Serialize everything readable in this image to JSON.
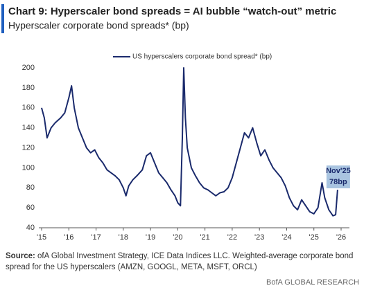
{
  "chart_data": {
    "type": "line",
    "title": "Chart 9: Hyperscaler bond spreads = AI bubble “watch-out” metric",
    "subtitle": "Hyperscaler corporate bond spreads* (bp)",
    "x": [
      2015.0,
      2015.1,
      2015.2,
      2015.35,
      2015.5,
      2015.7,
      2015.85,
      2016.0,
      2016.1,
      2016.2,
      2016.35,
      2016.5,
      2016.65,
      2016.8,
      2016.95,
      2017.1,
      2017.25,
      2017.4,
      2017.55,
      2017.7,
      2017.85,
      2018.0,
      2018.1,
      2018.2,
      2018.35,
      2018.5,
      2018.7,
      2018.85,
      2019.0,
      2019.15,
      2019.3,
      2019.45,
      2019.6,
      2019.75,
      2019.9,
      2020.0,
      2020.1,
      2020.17,
      2020.22,
      2020.28,
      2020.35,
      2020.5,
      2020.65,
      2020.8,
      2020.95,
      2021.1,
      2021.25,
      2021.4,
      2021.55,
      2021.7,
      2021.85,
      2022.0,
      2022.15,
      2022.3,
      2022.45,
      2022.6,
      2022.75,
      2022.9,
      2023.05,
      2023.2,
      2023.35,
      2023.5,
      2023.65,
      2023.8,
      2023.95,
      2024.1,
      2024.25,
      2024.4,
      2024.55,
      2024.7,
      2024.85,
      2025.0,
      2025.15,
      2025.3,
      2025.4,
      2025.55,
      2025.7,
      2025.8,
      2025.87
    ],
    "series": [
      {
        "name": "US hyperscalers corporate bond spread* (bp)",
        "color": "#1a2a6c",
        "values": [
          160,
          150,
          130,
          140,
          145,
          150,
          155,
          170,
          182,
          160,
          140,
          130,
          120,
          115,
          118,
          110,
          105,
          98,
          95,
          92,
          88,
          80,
          72,
          82,
          88,
          92,
          98,
          112,
          115,
          105,
          95,
          90,
          85,
          78,
          72,
          65,
          62,
          130,
          200,
          150,
          120,
          100,
          92,
          85,
          80,
          78,
          75,
          72,
          75,
          76,
          80,
          90,
          105,
          120,
          135,
          130,
          140,
          125,
          112,
          118,
          108,
          100,
          95,
          90,
          82,
          70,
          62,
          58,
          68,
          62,
          56,
          54,
          60,
          85,
          70,
          58,
          52,
          53,
          78
        ]
      }
    ],
    "xlim": [
      2015.0,
      2026.0
    ],
    "xticks": [
      {
        "value": 2015,
        "label": "'15"
      },
      {
        "value": 2016,
        "label": "'16"
      },
      {
        "value": 2017,
        "label": "'17"
      },
      {
        "value": 2018,
        "label": "'18"
      },
      {
        "value": 2019,
        "label": "'19"
      },
      {
        "value": 2020,
        "label": "'20"
      },
      {
        "value": 2021,
        "label": "'21"
      },
      {
        "value": 2022,
        "label": "'22"
      },
      {
        "value": 2023,
        "label": "'23"
      },
      {
        "value": 2024,
        "label": "'24"
      },
      {
        "value": 2025,
        "label": "'25"
      },
      {
        "value": 2026,
        "label": "'26"
      }
    ],
    "ylim": [
      40,
      200
    ],
    "yticks": [
      40,
      60,
      80,
      100,
      120,
      140,
      160,
      180,
      200
    ],
    "grid": false,
    "annotation": [
      "Nov'25",
      "78bp"
    ],
    "source_label": "Source:",
    "source": "ofA Global Investment Strategy, ICE Data Indices LLC. Weighted-average corporate bond spread for the US hyperscalers (AMZN, GOOGL, META, MSFT, ORCL)",
    "footer": "BofA GLOBAL RESEARCH"
  }
}
